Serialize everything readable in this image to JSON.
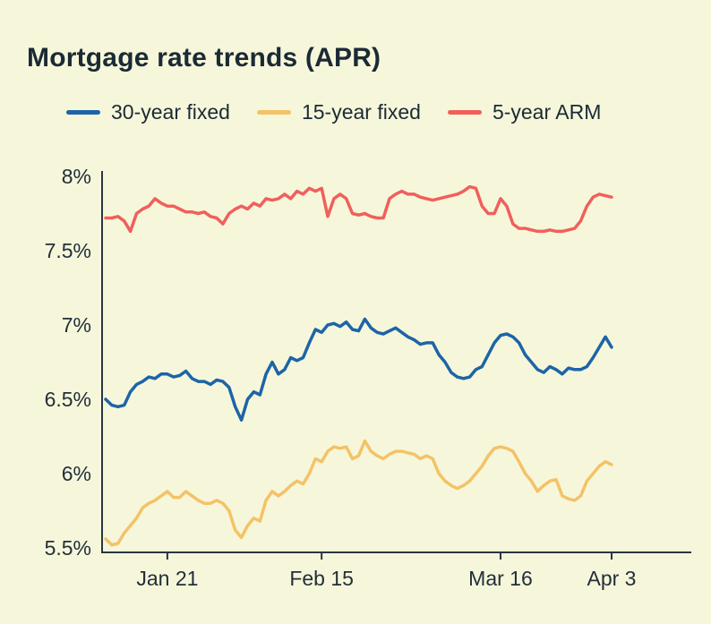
{
  "title": "Mortgage rate trends (APR)",
  "colors": {
    "background": "#f6f7da",
    "title_text": "#1b2a35",
    "axis": "#2a363f",
    "tick_text": "#222f3a"
  },
  "chart_data": {
    "type": "line",
    "title": "Mortgage rate trends (APR)",
    "xlabel": "",
    "ylabel": "",
    "ylim": [
      5.5,
      8.0
    ],
    "x_domain": [
      0,
      82
    ],
    "grid": false,
    "legend_position": "top",
    "y_ticks": [
      {
        "v": 5.5,
        "label": "5.5%"
      },
      {
        "v": 6.0,
        "label": "6%"
      },
      {
        "v": 6.5,
        "label": "6.5%"
      },
      {
        "v": 7.0,
        "label": "7%"
      },
      {
        "v": 7.5,
        "label": "7.5%"
      },
      {
        "v": 8.0,
        "label": "8%"
      }
    ],
    "x_ticks": [
      {
        "d": 10,
        "label": "Jan 21"
      },
      {
        "d": 35,
        "label": "Feb 15"
      },
      {
        "d": 64,
        "label": "Mar 16"
      },
      {
        "d": 82,
        "label": "Apr 3"
      }
    ],
    "series": [
      {
        "name": "30-year fixed",
        "color": "#1d64a8",
        "values": [
          6.5,
          6.46,
          6.45,
          6.46,
          6.55,
          6.6,
          6.62,
          6.65,
          6.64,
          6.67,
          6.67,
          6.65,
          6.66,
          6.69,
          6.64,
          6.62,
          6.62,
          6.6,
          6.63,
          6.62,
          6.58,
          6.45,
          6.36,
          6.5,
          6.55,
          6.53,
          6.67,
          6.75,
          6.67,
          6.7,
          6.78,
          6.76,
          6.78,
          6.88,
          6.97,
          6.95,
          7.0,
          7.01,
          6.99,
          7.02,
          6.97,
          6.96,
          7.04,
          6.98,
          6.95,
          6.94,
          6.96,
          6.98,
          6.95,
          6.92,
          6.9,
          6.87,
          6.88,
          6.88,
          6.8,
          6.75,
          6.68,
          6.65,
          6.64,
          6.65,
          6.7,
          6.72,
          6.8,
          6.88,
          6.93,
          6.94,
          6.92,
          6.88,
          6.8,
          6.75,
          6.7,
          6.68,
          6.72,
          6.7,
          6.67,
          6.71,
          6.7,
          6.7,
          6.72,
          6.78,
          6.85,
          6.92,
          6.85
        ]
      },
      {
        "name": "15-year fixed",
        "color": "#f4c268",
        "values": [
          5.56,
          5.52,
          5.53,
          5.6,
          5.65,
          5.7,
          5.77,
          5.8,
          5.82,
          5.85,
          5.88,
          5.84,
          5.84,
          5.88,
          5.85,
          5.82,
          5.8,
          5.8,
          5.82,
          5.8,
          5.75,
          5.62,
          5.57,
          5.65,
          5.7,
          5.68,
          5.82,
          5.88,
          5.85,
          5.88,
          5.92,
          5.95,
          5.93,
          6.0,
          6.1,
          6.08,
          6.15,
          6.18,
          6.17,
          6.18,
          6.1,
          6.12,
          6.22,
          6.15,
          6.12,
          6.1,
          6.13,
          6.15,
          6.15,
          6.14,
          6.13,
          6.1,
          6.12,
          6.1,
          6.0,
          5.95,
          5.92,
          5.9,
          5.92,
          5.95,
          6.0,
          6.05,
          6.12,
          6.17,
          6.18,
          6.17,
          6.15,
          6.08,
          6.0,
          5.95,
          5.88,
          5.92,
          5.95,
          5.96,
          5.85,
          5.83,
          5.82,
          5.85,
          5.95,
          6.0,
          6.05,
          6.08,
          6.06
        ]
      },
      {
        "name": "5-year ARM",
        "color": "#f15f5c",
        "values": [
          7.72,
          7.72,
          7.73,
          7.7,
          7.63,
          7.75,
          7.78,
          7.8,
          7.85,
          7.82,
          7.8,
          7.8,
          7.78,
          7.76,
          7.76,
          7.75,
          7.76,
          7.73,
          7.72,
          7.68,
          7.75,
          7.78,
          7.8,
          7.78,
          7.82,
          7.8,
          7.85,
          7.84,
          7.85,
          7.88,
          7.85,
          7.9,
          7.88,
          7.92,
          7.9,
          7.92,
          7.73,
          7.85,
          7.88,
          7.85,
          7.75,
          7.74,
          7.75,
          7.73,
          7.72,
          7.72,
          7.85,
          7.88,
          7.9,
          7.88,
          7.88,
          7.86,
          7.85,
          7.84,
          7.85,
          7.86,
          7.87,
          7.88,
          7.9,
          7.93,
          7.92,
          7.8,
          7.75,
          7.75,
          7.85,
          7.8,
          7.68,
          7.65,
          7.65,
          7.64,
          7.63,
          7.63,
          7.64,
          7.63,
          7.63,
          7.64,
          7.65,
          7.7,
          7.8,
          7.86,
          7.88,
          7.87,
          7.86
        ]
      }
    ]
  }
}
